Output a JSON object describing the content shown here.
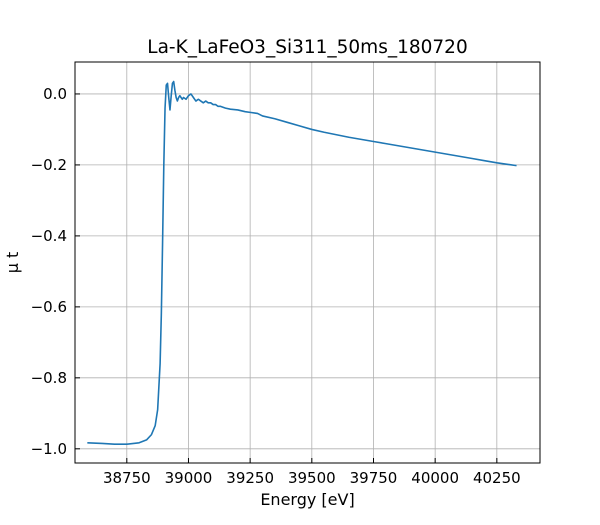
{
  "chart_data": {
    "type": "line",
    "title": "La-K_LaFeO3_Si311_50ms_180720",
    "xlabel": "Energy [eV]",
    "ylabel": "μ t",
    "xlim": [
      38540,
      40425
    ],
    "ylim": [
      -1.04,
      0.09
    ],
    "x_ticks": [
      38750,
      39000,
      39250,
      39500,
      39750,
      40000,
      40250
    ],
    "x_tick_labels": [
      "38750",
      "39000",
      "39250",
      "39500",
      "39750",
      "40000",
      "40250"
    ],
    "y_ticks": [
      0.0,
      -0.2,
      -0.4,
      -0.6,
      -0.8,
      -1.0
    ],
    "y_tick_labels": [
      "0.0",
      "−0.2",
      "−0.4",
      "−0.6",
      "−0.8",
      "−1.0"
    ],
    "grid": true,
    "series": [
      {
        "color": "#1f77b4",
        "x": [
          38590,
          38650,
          38700,
          38750,
          38800,
          38830,
          38850,
          38865,
          38875,
          38885,
          38890,
          38895,
          38900,
          38905,
          38910,
          38915,
          38920,
          38925,
          38930,
          38935,
          38940,
          38945,
          38950,
          38955,
          38960,
          38965,
          38970,
          38975,
          38980,
          38990,
          39000,
          39010,
          39020,
          39030,
          39040,
          39050,
          39060,
          39070,
          39080,
          39090,
          39100,
          39110,
          39120,
          39130,
          39150,
          39170,
          39200,
          39230,
          39250,
          39280,
          39300,
          39350,
          39400,
          39450,
          39500,
          39550,
          39600,
          39650,
          39700,
          39750,
          39800,
          39850,
          39900,
          39950,
          40000,
          40050,
          40100,
          40150,
          40200,
          40250,
          40300,
          40330
        ],
        "y": [
          -0.983,
          -0.985,
          -0.987,
          -0.987,
          -0.983,
          -0.975,
          -0.96,
          -0.935,
          -0.89,
          -0.76,
          -0.62,
          -0.42,
          -0.2,
          -0.04,
          0.025,
          0.03,
          -0.01,
          -0.045,
          -0.005,
          0.03,
          0.035,
          0.01,
          -0.01,
          -0.02,
          -0.01,
          -0.005,
          -0.01,
          -0.015,
          -0.01,
          -0.015,
          -0.005,
          0.0,
          -0.01,
          -0.02,
          -0.015,
          -0.02,
          -0.025,
          -0.02,
          -0.025,
          -0.025,
          -0.03,
          -0.03,
          -0.035,
          -0.035,
          -0.04,
          -0.043,
          -0.045,
          -0.05,
          -0.052,
          -0.055,
          -0.062,
          -0.07,
          -0.08,
          -0.09,
          -0.1,
          -0.108,
          -0.115,
          -0.122,
          -0.128,
          -0.134,
          -0.14,
          -0.146,
          -0.152,
          -0.158,
          -0.164,
          -0.17,
          -0.176,
          -0.182,
          -0.188,
          -0.194,
          -0.199,
          -0.202
        ]
      }
    ]
  }
}
